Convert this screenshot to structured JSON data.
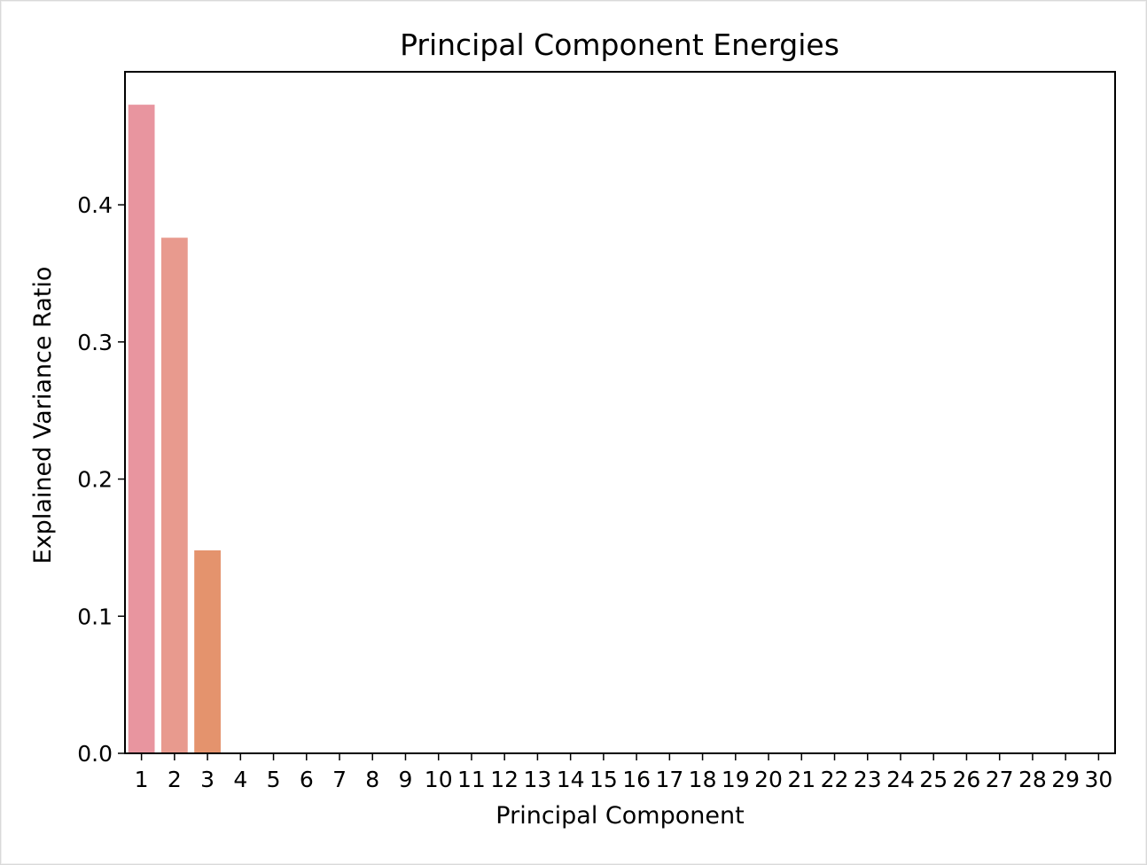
{
  "chart_data": {
    "type": "bar",
    "title": "Principal Component Energies",
    "xlabel": "Principal Component",
    "ylabel": "Explained Variance Ratio",
    "categories": [
      "1",
      "2",
      "3",
      "4",
      "5",
      "6",
      "7",
      "8",
      "9",
      "10",
      "11",
      "12",
      "13",
      "14",
      "15",
      "16",
      "17",
      "18",
      "19",
      "20",
      "21",
      "22",
      "23",
      "24",
      "25",
      "26",
      "27",
      "28",
      "29",
      "30"
    ],
    "values": [
      0.473,
      0.376,
      0.148,
      0,
      0,
      0,
      0,
      0,
      0,
      0,
      0,
      0,
      0,
      0,
      0,
      0,
      0,
      0,
      0,
      0,
      0,
      0,
      0,
      0,
      0,
      0,
      0,
      0,
      0,
      0
    ],
    "colors": [
      "#e8959f",
      "#e89a8e",
      "#e4936d"
    ],
    "yticks": [
      "0.0",
      "0.1",
      "0.2",
      "0.3",
      "0.4"
    ],
    "ylim": [
      0,
      0.497
    ],
    "grid": false,
    "legend": "none"
  }
}
